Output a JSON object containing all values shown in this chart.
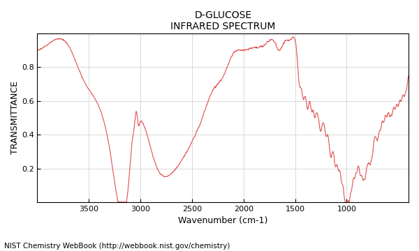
{
  "title_line1": "D-GLUCOSE",
  "title_line2": "INFRARED SPECTRUM",
  "xlabel": "Wavenumber (cm-1)",
  "ylabel": "TRANSMITTANCE",
  "footer": "NIST Chemistry WebBook (http://webbook.nist.gov/chemistry)",
  "xlim": [
    4000,
    400
  ],
  "ylim": [
    0.0,
    1.0
  ],
  "line_color": "#e05050",
  "bg_color": "#ffffff",
  "xticks": [
    3500,
    3000,
    2500,
    2000,
    1500,
    1000
  ],
  "yticks": [
    0.2,
    0.4,
    0.6,
    0.8
  ],
  "title_fontsize": 10,
  "label_fontsize": 9,
  "footer_fontsize": 7.5
}
